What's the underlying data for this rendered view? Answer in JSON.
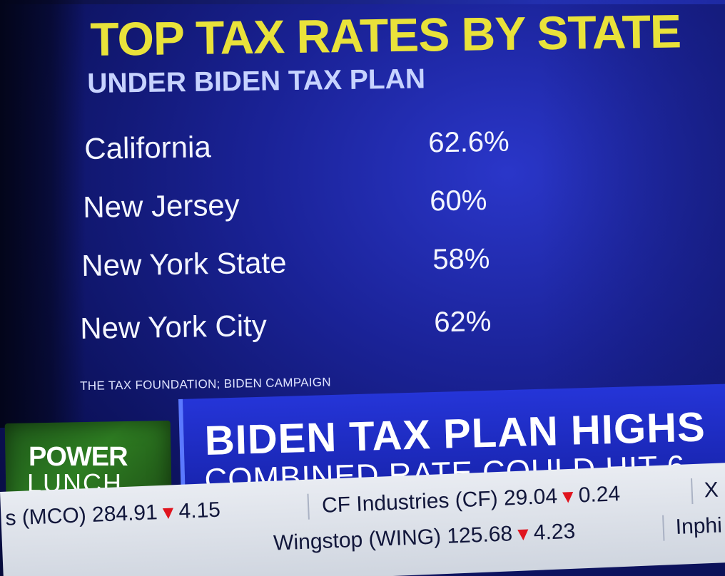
{
  "title": "TOP TAX RATES BY STATE",
  "subtitle": "UNDER BIDEN TAX PLAN",
  "rates": [
    {
      "state": "California",
      "rate": "62.6%"
    },
    {
      "state": "New Jersey",
      "rate": "60%"
    },
    {
      "state": "New York State",
      "rate": "58%"
    },
    {
      "state": "New York City",
      "rate": "62%"
    }
  ],
  "source": "THE TAX FOUNDATION; BIDEN CAMPAIGN",
  "show_logo": {
    "line1": "POWER",
    "line2": "LUNCH"
  },
  "headline": {
    "main": "BIDEN TAX PLAN HIGHS",
    "sub": "COMBINED RATE COULD HIT 6"
  },
  "ticker": {
    "row1": [
      {
        "name": "s (MCO) 284.91",
        "change": "4.15",
        "direction": "down"
      },
      {
        "name": "CF Industries (CF) 29.04",
        "change": "0.24",
        "direction": "down"
      },
      {
        "name": "X",
        "change": "",
        "direction": ""
      }
    ],
    "row2": [
      {
        "name": "Wingstop (WING) 125.68",
        "change": "4.23",
        "direction": "down"
      },
      {
        "name": "Inphi",
        "change": "",
        "direction": ""
      }
    ]
  },
  "colors": {
    "title": "#e9e23a",
    "subtitle": "#c7d3ff",
    "background": "#1a2296",
    "logo_green": "#2e7d22",
    "headline_blue": "#2535d8",
    "down_red": "#e0141e",
    "ticker_bg": "#e9ecf2"
  }
}
